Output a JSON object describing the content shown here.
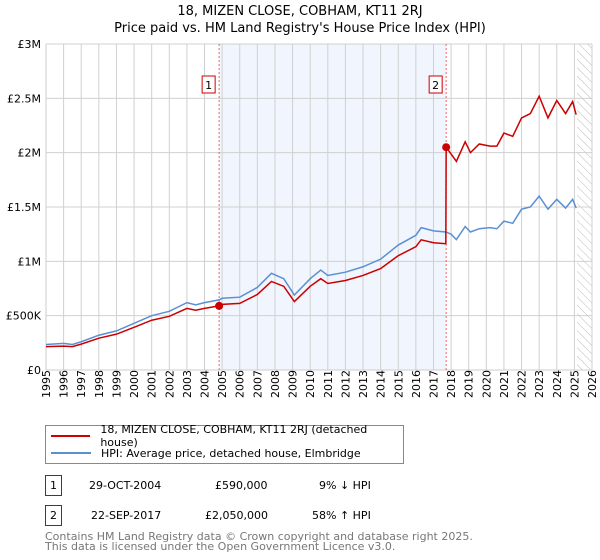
{
  "chart_data": {
    "type": "line",
    "title": "18, MIZEN CLOSE, COBHAM, KT11 2RJ",
    "subtitle": "Price paid vs. HM Land Registry's House Price Index (HPI)",
    "xlim": [
      1995,
      2026
    ],
    "ylim": [
      0,
      3000000
    ],
    "y_ticks": [
      {
        "v": 0,
        "label": "£0"
      },
      {
        "v": 500000,
        "label": "£500K"
      },
      {
        "v": 1000000,
        "label": "£1M"
      },
      {
        "v": 1500000,
        "label": "£1.5M"
      },
      {
        "v": 2000000,
        "label": "£2M"
      },
      {
        "v": 2500000,
        "label": "£2.5M"
      },
      {
        "v": 3000000,
        "label": "£3M"
      }
    ],
    "x_ticks": [
      "1995",
      "1996",
      "1997",
      "1998",
      "1999",
      "2000",
      "2001",
      "2002",
      "2003",
      "2004",
      "2005",
      "2006",
      "2007",
      "2008",
      "2009",
      "2010",
      "2011",
      "2012",
      "2013",
      "2014",
      "2015",
      "2016",
      "2017",
      "2018",
      "2019",
      "2020",
      "2021",
      "2022",
      "2023",
      "2024",
      "2025",
      "2026"
    ],
    "grid": true,
    "shaded_range": [
      2004.83,
      2017.72
    ],
    "forecast_hatch_from": 2025.15,
    "series": [
      {
        "name": "18, MIZEN CLOSE, COBHAM, KT11 2RJ (detached house)",
        "color": "#cc0000",
        "x": [
          1995,
          1996,
          1996.5,
          1997,
          1998,
          1999,
          2000,
          2001,
          2002,
          2003,
          2003.5,
          2004,
          2004.83,
          2005,
          2006,
          2007,
          2007.8,
          2008.5,
          2009.1,
          2010,
          2010.6,
          2011,
          2012,
          2013,
          2014,
          2015,
          2016,
          2016.3,
          2017,
          2017.7,
          2017.72,
          2018.3,
          2018.8,
          2019.1,
          2019.6,
          2020.2,
          2020.6,
          2021,
          2021.5,
          2022,
          2022.5,
          2023,
          2023.5,
          2024,
          2024.5,
          2024.9,
          2025.1
        ],
        "y": [
          215000,
          220000,
          215000,
          238000,
          293000,
          330000,
          393000,
          458000,
          494000,
          567000,
          550000,
          567000,
          590000,
          604000,
          613000,
          695000,
          815000,
          770000,
          630000,
          770000,
          840000,
          796000,
          824000,
          870000,
          933000,
          1052000,
          1135000,
          1198000,
          1171000,
          1162000,
          2050000,
          1920000,
          2100000,
          2000000,
          2080000,
          2060000,
          2060000,
          2180000,
          2150000,
          2320000,
          2360000,
          2520000,
          2320000,
          2480000,
          2360000,
          2470000,
          2350000
        ]
      },
      {
        "name": "HPI: Average price, detached house, Elmbridge",
        "color": "#5b8fd4",
        "x": [
          1995,
          1996,
          1996.5,
          1997,
          1998,
          1999,
          2000,
          2001,
          2002,
          2003,
          2003.5,
          2004,
          2004.83,
          2005,
          2006,
          2007,
          2007.8,
          2008.5,
          2009.1,
          2010,
          2010.6,
          2011,
          2012,
          2013,
          2014,
          2015,
          2016,
          2016.3,
          2017,
          2017.7,
          2018,
          2018.3,
          2018.8,
          2019.1,
          2019.6,
          2020.2,
          2020.6,
          2021,
          2021.5,
          2022,
          2022.5,
          2023,
          2023.5,
          2024,
          2024.5,
          2024.9,
          2025.1
        ],
        "y": [
          235000,
          245000,
          235000,
          260000,
          320000,
          360000,
          430000,
          500000,
          540000,
          620000,
          600000,
          620000,
          645000,
          660000,
          670000,
          760000,
          890000,
          840000,
          690000,
          840000,
          920000,
          870000,
          900000,
          950000,
          1020000,
          1150000,
          1240000,
          1310000,
          1280000,
          1270000,
          1250000,
          1200000,
          1320000,
          1270000,
          1300000,
          1310000,
          1300000,
          1370000,
          1350000,
          1480000,
          1500000,
          1600000,
          1480000,
          1570000,
          1490000,
          1570000,
          1490000
        ]
      }
    ],
    "sales": [
      {
        "id": "1",
        "x": 2004.83,
        "price": 590000,
        "date": "29-OCT-2004",
        "price_label": "£590,000",
        "delta": "9% ↓ HPI"
      },
      {
        "id": "2",
        "x": 2017.72,
        "price": 2050000,
        "date": "22-SEP-2017",
        "price_label": "£2,050,000",
        "delta": "58% ↑ HPI"
      }
    ]
  },
  "footer": {
    "line1": "Contains HM Land Registry data © Crown copyright and database right 2025.",
    "line2": "This data is licensed under the Open Government Licence v3.0."
  }
}
